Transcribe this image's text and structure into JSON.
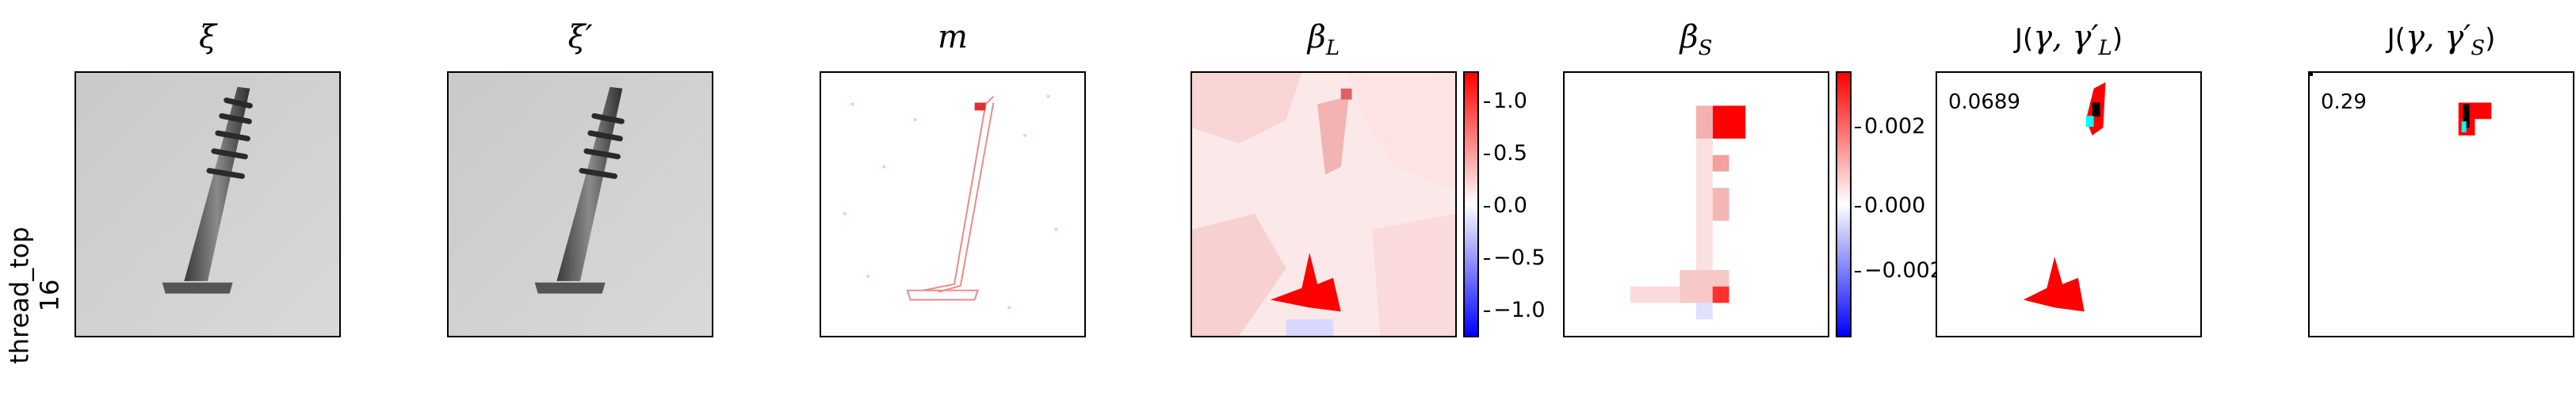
{
  "row_label": {
    "line1": "thread_top",
    "line2": "16"
  },
  "panels": [
    {
      "id": "xi",
      "title": "ξ"
    },
    {
      "id": "xi_prime",
      "title": "ξ′"
    },
    {
      "id": "m",
      "title": "m"
    },
    {
      "id": "beta_L",
      "title_base": "β",
      "title_sub": "L",
      "colorbar": {
        "ticks": [
          "1.0",
          "0.5",
          "0.0",
          "−0.5",
          "−1.0"
        ]
      }
    },
    {
      "id": "beta_S",
      "title_base": "β",
      "title_sub": "S",
      "colorbar": {
        "ticks": [
          "0.002",
          "0.000",
          "−0.002"
        ]
      }
    },
    {
      "id": "J_L",
      "title_fn": "J(",
      "title_args": "γ, γ′",
      "title_sub": "L",
      "title_close": ")",
      "score": "0.0689"
    },
    {
      "id": "J_S",
      "title_fn": "J(",
      "title_args": "γ, γ′",
      "title_sub": "S",
      "title_close": ")",
      "score": "0.29"
    }
  ],
  "colors": {
    "positive": "#ff0000",
    "negative": "#0000ff",
    "neutral": "#ffffff",
    "mask_black": "#000000",
    "mask_cyan": "#00ffff"
  }
}
